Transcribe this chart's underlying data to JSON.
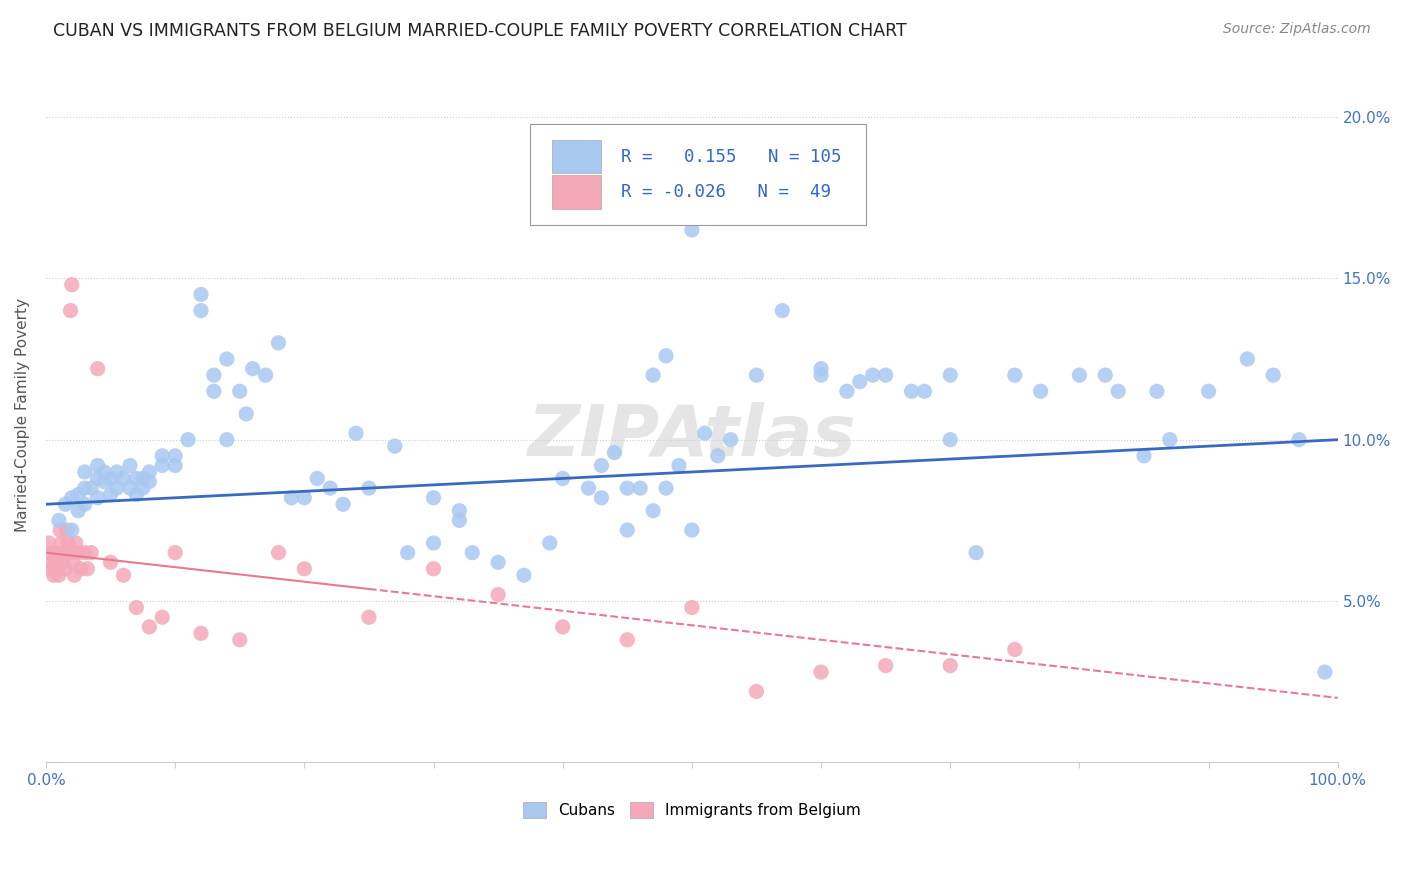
{
  "title": "CUBAN VS IMMIGRANTS FROM BELGIUM MARRIED-COUPLE FAMILY POVERTY CORRELATION CHART",
  "source": "Source: ZipAtlas.com",
  "ylabel": "Married-Couple Family Poverty",
  "yticks": [
    0.0,
    0.05,
    0.1,
    0.15,
    0.2
  ],
  "ytick_labels": [
    "",
    "5.0%",
    "10.0%",
    "15.0%",
    "20.0%"
  ],
  "xlim": [
    0.0,
    1.0
  ],
  "ylim": [
    0.0,
    0.215
  ],
  "cubans_R": 0.155,
  "cubans_N": 105,
  "belgium_R": -0.026,
  "belgium_N": 49,
  "cubans_color": "#a8c8f0",
  "belgium_color": "#f4a8b8",
  "trendline_blue": "#3a6abf",
  "trendline_pink": "#e87a90",
  "legend_label_1": "Cubans",
  "legend_label_2": "Immigrants from Belgium",
  "watermark": "ZIPAtlas",
  "cubans_x": [
    0.01,
    0.015,
    0.02,
    0.02,
    0.025,
    0.025,
    0.03,
    0.03,
    0.03,
    0.035,
    0.04,
    0.04,
    0.04,
    0.045,
    0.045,
    0.05,
    0.05,
    0.055,
    0.055,
    0.06,
    0.065,
    0.065,
    0.07,
    0.07,
    0.075,
    0.075,
    0.08,
    0.08,
    0.09,
    0.09,
    0.1,
    0.1,
    0.11,
    0.12,
    0.12,
    0.13,
    0.13,
    0.14,
    0.14,
    0.15,
    0.155,
    0.16,
    0.17,
    0.18,
    0.19,
    0.2,
    0.21,
    0.22,
    0.23,
    0.24,
    0.25,
    0.27,
    0.28,
    0.3,
    0.32,
    0.33,
    0.35,
    0.37,
    0.39,
    0.4,
    0.42,
    0.43,
    0.44,
    0.46,
    0.47,
    0.48,
    0.49,
    0.5,
    0.51,
    0.52,
    0.53,
    0.55,
    0.57,
    0.6,
    0.62,
    0.64,
    0.67,
    0.7,
    0.72,
    0.75,
    0.77,
    0.8,
    0.82,
    0.85,
    0.87,
    0.9,
    0.93,
    0.95,
    0.97,
    0.99,
    0.43,
    0.45,
    0.47,
    0.6,
    0.63,
    0.65,
    0.68,
    0.7,
    0.83,
    0.86,
    0.45,
    0.3,
    0.32,
    0.48,
    0.5
  ],
  "cubans_y": [
    0.075,
    0.08,
    0.072,
    0.082,
    0.078,
    0.083,
    0.085,
    0.08,
    0.09,
    0.085,
    0.088,
    0.082,
    0.092,
    0.087,
    0.09,
    0.088,
    0.083,
    0.09,
    0.085,
    0.088,
    0.092,
    0.085,
    0.088,
    0.083,
    0.088,
    0.085,
    0.09,
    0.087,
    0.095,
    0.092,
    0.095,
    0.092,
    0.1,
    0.145,
    0.14,
    0.12,
    0.115,
    0.125,
    0.1,
    0.115,
    0.108,
    0.122,
    0.12,
    0.13,
    0.082,
    0.082,
    0.088,
    0.085,
    0.08,
    0.102,
    0.085,
    0.098,
    0.065,
    0.068,
    0.075,
    0.065,
    0.062,
    0.058,
    0.068,
    0.088,
    0.085,
    0.092,
    0.096,
    0.085,
    0.12,
    0.126,
    0.092,
    0.165,
    0.102,
    0.095,
    0.1,
    0.12,
    0.14,
    0.12,
    0.115,
    0.12,
    0.115,
    0.12,
    0.065,
    0.12,
    0.115,
    0.12,
    0.12,
    0.095,
    0.1,
    0.115,
    0.125,
    0.12,
    0.1,
    0.028,
    0.082,
    0.085,
    0.078,
    0.122,
    0.118,
    0.12,
    0.115,
    0.1,
    0.115,
    0.115,
    0.072,
    0.082,
    0.078,
    0.085,
    0.072
  ],
  "belgium_x": [
    0.002,
    0.003,
    0.004,
    0.005,
    0.006,
    0.007,
    0.008,
    0.009,
    0.01,
    0.011,
    0.012,
    0.013,
    0.014,
    0.015,
    0.016,
    0.017,
    0.018,
    0.019,
    0.02,
    0.021,
    0.022,
    0.023,
    0.025,
    0.027,
    0.03,
    0.032,
    0.035,
    0.04,
    0.05,
    0.06,
    0.07,
    0.08,
    0.09,
    0.1,
    0.12,
    0.15,
    0.18,
    0.2,
    0.25,
    0.3,
    0.35,
    0.4,
    0.45,
    0.5,
    0.55,
    0.6,
    0.65,
    0.7,
    0.75
  ],
  "belgium_y": [
    0.068,
    0.065,
    0.062,
    0.06,
    0.058,
    0.065,
    0.062,
    0.06,
    0.058,
    0.072,
    0.068,
    0.062,
    0.065,
    0.06,
    0.072,
    0.068,
    0.065,
    0.14,
    0.148,
    0.062,
    0.058,
    0.068,
    0.065,
    0.06,
    0.065,
    0.06,
    0.065,
    0.122,
    0.062,
    0.058,
    0.048,
    0.042,
    0.045,
    0.065,
    0.04,
    0.038,
    0.065,
    0.06,
    0.045,
    0.06,
    0.052,
    0.042,
    0.038,
    0.048,
    0.022,
    0.028,
    0.03,
    0.03,
    0.035
  ]
}
